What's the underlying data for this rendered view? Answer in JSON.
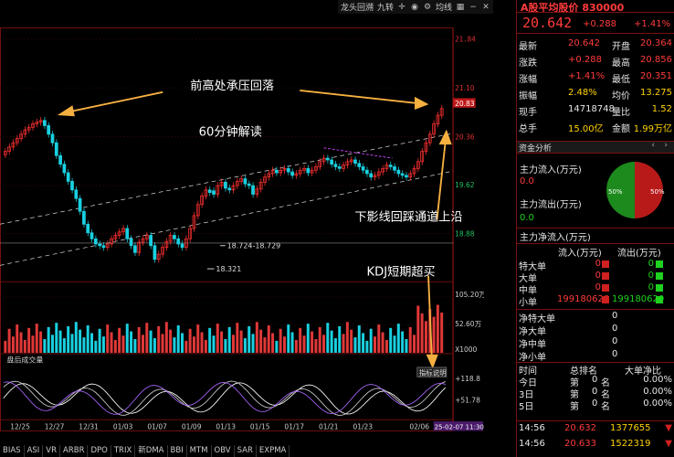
{
  "toolbar": {
    "items": [
      "龙头回溯",
      "九转",
      "均线"
    ],
    "icons": [
      "crosshair-icon",
      "camera-icon",
      "settings-icon",
      "grid-icon",
      "minus-icon",
      "close-icon"
    ]
  },
  "header": {
    "title": "A股平均股价 830000",
    "price": "20.642",
    "change": "+0.288",
    "pct": "+1.41%"
  },
  "price_axis": {
    "ticks": [
      "21.84",
      "21.10",
      "20.83",
      "20.36",
      "19.62",
      "18.88"
    ]
  },
  "volume_axis": {
    "ticks": [
      "105.20万",
      "52.60万",
      "X1000"
    ]
  },
  "kdj_axis": {
    "ticks": [
      "+118.8",
      "+51.78"
    ]
  },
  "date_axis": [
    "12/25",
    "12/27",
    "12/31",
    "01/03",
    "01/07",
    "01/09",
    "01/13",
    "01/15",
    "01/17",
    "01/21",
    "01/23",
    "02/06"
  ],
  "date_cursor": "25-02-07 11:30",
  "annotations": {
    "a1": "前高处承压回落",
    "a2": "60分钟解读",
    "a3": "下影线回踩通道上沿",
    "a4": "KDJ短期超买",
    "low1": "18.321",
    "range1": "18.724-18.729"
  },
  "chart_labels": {
    "after_hours_volume": "盘后成交量",
    "indicator_note": "指标说明"
  },
  "quote": {
    "rows": [
      {
        "l1": "最新",
        "v1": "20.642",
        "l2": "开盘",
        "v2": "20.364",
        "c1": "red",
        "c2": "red"
      },
      {
        "l1": "涨跌",
        "v1": "+0.288",
        "l2": "最高",
        "v2": "20.856",
        "c1": "red",
        "c2": "red"
      },
      {
        "l1": "涨幅",
        "v1": "+1.41%",
        "l2": "最低",
        "v2": "20.351",
        "c1": "red",
        "c2": "red"
      },
      {
        "l1": "振幅",
        "v1": "2.48%",
        "l2": "均价",
        "v2": "13.275",
        "c1": "yellow",
        "c2": "yellow"
      },
      {
        "l1": "现手",
        "v1": "14718748",
        "l2": "量比",
        "v2": "1.52",
        "c1": "white",
        "c2": "yellow"
      },
      {
        "l1": "总手",
        "v1": "15.00亿",
        "l2": "金额",
        "v2": "1.99万亿",
        "c1": "yellow",
        "c2": "yellow"
      }
    ]
  },
  "fund": {
    "title": "资金分析",
    "in_label": "主力流入(万元)",
    "in_value": "0.0",
    "out_label": "主力流出(万元)",
    "out_value": "0.0",
    "net_label": "主力净流入(万元)",
    "pie_left": "50%",
    "pie_right": "50%",
    "col_in": "流入(万元)",
    "col_out": "流出(万元)",
    "rows": [
      {
        "name": "特大单",
        "in": "0",
        "out": "0"
      },
      {
        "name": "大单",
        "in": "0",
        "out": "0"
      },
      {
        "name": "中单",
        "in": "0",
        "out": "0"
      },
      {
        "name": "小单",
        "in": "199180620",
        "out": "199180620"
      }
    ]
  },
  "net": {
    "rows": [
      {
        "name": "净特大单",
        "value": "0"
      },
      {
        "name": "净大单",
        "value": "0"
      },
      {
        "name": "净中单",
        "value": "0"
      },
      {
        "name": "净小单",
        "value": "0"
      }
    ]
  },
  "rank": {
    "headers": [
      "时间",
      "总排名",
      "大单净比"
    ],
    "rows": [
      {
        "t": "今日",
        "pre": "第",
        "n": "0",
        "suf": "名",
        "pct": "0.00%"
      },
      {
        "t": "3日",
        "pre": "第",
        "n": "0",
        "suf": "名",
        "pct": "0.00%"
      },
      {
        "t": "5日",
        "pre": "第",
        "n": "0",
        "suf": "名",
        "pct": "0.00%"
      }
    ]
  },
  "ticks": {
    "rows": [
      {
        "time": "14:56",
        "price": "20.632",
        "vol": "1377655"
      },
      {
        "time": "14:56",
        "price": "20.633",
        "vol": "1522319"
      }
    ]
  },
  "bottom_tabs": [
    "BIAS",
    "ASI",
    "VR",
    "ARBR",
    "DPO",
    "TRIX",
    "新DMA",
    "BBI",
    "MTM",
    "OBV",
    "SAR",
    "EXPMA"
  ]
}
